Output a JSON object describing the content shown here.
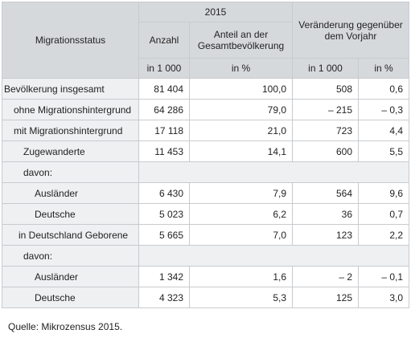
{
  "table": {
    "header": {
      "status": "Migrationsstatus",
      "year": "2015",
      "change": "Veränderung gegenüber dem Vorjahr",
      "columns": [
        "Anzahl",
        "Anteil an der Gesamtbevölkerung"
      ],
      "units": [
        "in 1 000",
        "in %",
        "in 1 000",
        "in %"
      ]
    },
    "rows": [
      {
        "label": "Bevölkerung insgesamt",
        "values": [
          "81 404",
          "100,0",
          "508",
          "0,6"
        ]
      },
      {
        "label": "ohne Migrationshintergrund",
        "values": [
          "64 286",
          "79,0",
          "– 215",
          "– 0,3"
        ]
      },
      {
        "label": "mit Migrationshintergrund",
        "values": [
          "17 118",
          "21,0",
          "723",
          "4,4"
        ]
      },
      {
        "label": "Zugewanderte",
        "values": [
          "11 453",
          "14,1",
          "600",
          "5,5"
        ]
      },
      {
        "label": "davon:",
        "values": []
      },
      {
        "label": "Ausländer",
        "values": [
          "6 430",
          "7,9",
          "564",
          "9,6"
        ]
      },
      {
        "label": "Deutsche",
        "values": [
          "5 023",
          "6,2",
          "36",
          "0,7"
        ]
      },
      {
        "label": "in Deutschland Geborene",
        "values": [
          "5 665",
          "7,0",
          "123",
          "2,2"
        ]
      },
      {
        "label": "davon:",
        "values": []
      },
      {
        "label": "Ausländer",
        "values": [
          "1 342",
          "1,6",
          "– 2",
          "– 0,1"
        ]
      },
      {
        "label": "Deutsche",
        "values": [
          "4 323",
          "5,3",
          "125",
          "3,0"
        ]
      }
    ]
  },
  "source": "Quelle: Mikrozensus 2015."
}
